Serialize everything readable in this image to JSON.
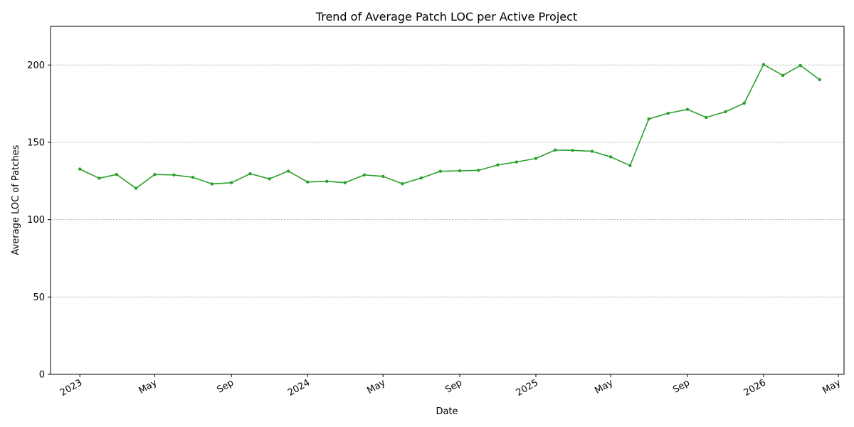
{
  "chart_data": {
    "type": "line",
    "title": "Trend of Average Patch LOC per Active Project",
    "xlabel": "Date",
    "ylabel": "Average LOC of Patches",
    "ylim": [
      0,
      225
    ],
    "xlim": [
      "2022-11-15",
      "2026-05-10"
    ],
    "grid": "horizontal-dashed",
    "line_color": "#2ca02c",
    "yticks": [
      0,
      50,
      100,
      150,
      200
    ],
    "xticks": [
      {
        "date": "2023-01-01",
        "label": "2023"
      },
      {
        "date": "2023-05-01",
        "label": "May"
      },
      {
        "date": "2023-09-01",
        "label": "Sep"
      },
      {
        "date": "2024-01-01",
        "label": "2024"
      },
      {
        "date": "2024-05-01",
        "label": "May"
      },
      {
        "date": "2024-09-01",
        "label": "Sep"
      },
      {
        "date": "2025-01-01",
        "label": "2025"
      },
      {
        "date": "2025-05-01",
        "label": "May"
      },
      {
        "date": "2025-09-01",
        "label": "Sep"
      },
      {
        "date": "2026-01-01",
        "label": "2026"
      },
      {
        "date": "2026-05-01",
        "label": "May"
      }
    ],
    "series": [
      {
        "x": [
          "2023-01-01",
          "2023-02-01",
          "2023-03-01",
          "2023-04-01",
          "2023-05-01",
          "2023-06-01",
          "2023-07-01",
          "2023-08-01",
          "2023-09-01",
          "2023-10-01",
          "2023-11-01",
          "2023-12-01",
          "2024-01-01",
          "2024-02-01",
          "2024-03-01",
          "2024-04-01",
          "2024-05-01",
          "2024-06-01",
          "2024-07-01",
          "2024-08-01",
          "2024-09-01",
          "2024-10-01",
          "2024-11-01",
          "2024-12-01",
          "2025-01-01",
          "2025-02-01",
          "2025-03-01",
          "2025-04-01",
          "2025-05-01",
          "2025-06-01",
          "2025-07-01",
          "2025-08-01",
          "2025-09-01",
          "2025-10-01",
          "2025-11-01",
          "2025-12-01",
          "2026-01-01",
          "2026-02-01",
          "2026-03-01",
          "2026-04-01"
        ],
        "y": [
          132.7,
          126.8,
          129.2,
          120.3,
          129.2,
          128.9,
          127.4,
          123.1,
          123.9,
          129.7,
          126.4,
          131.4,
          124.4,
          124.8,
          123.9,
          128.9,
          128.0,
          123.2,
          126.9,
          131.3,
          131.6,
          131.9,
          135.4,
          137.3,
          139.6,
          145.0,
          144.8,
          144.2,
          140.6,
          135.0,
          165.1,
          168.8,
          171.3,
          166.1,
          169.8,
          175.3,
          200.3,
          193.3,
          199.7,
          190.5
        ]
      }
    ]
  }
}
